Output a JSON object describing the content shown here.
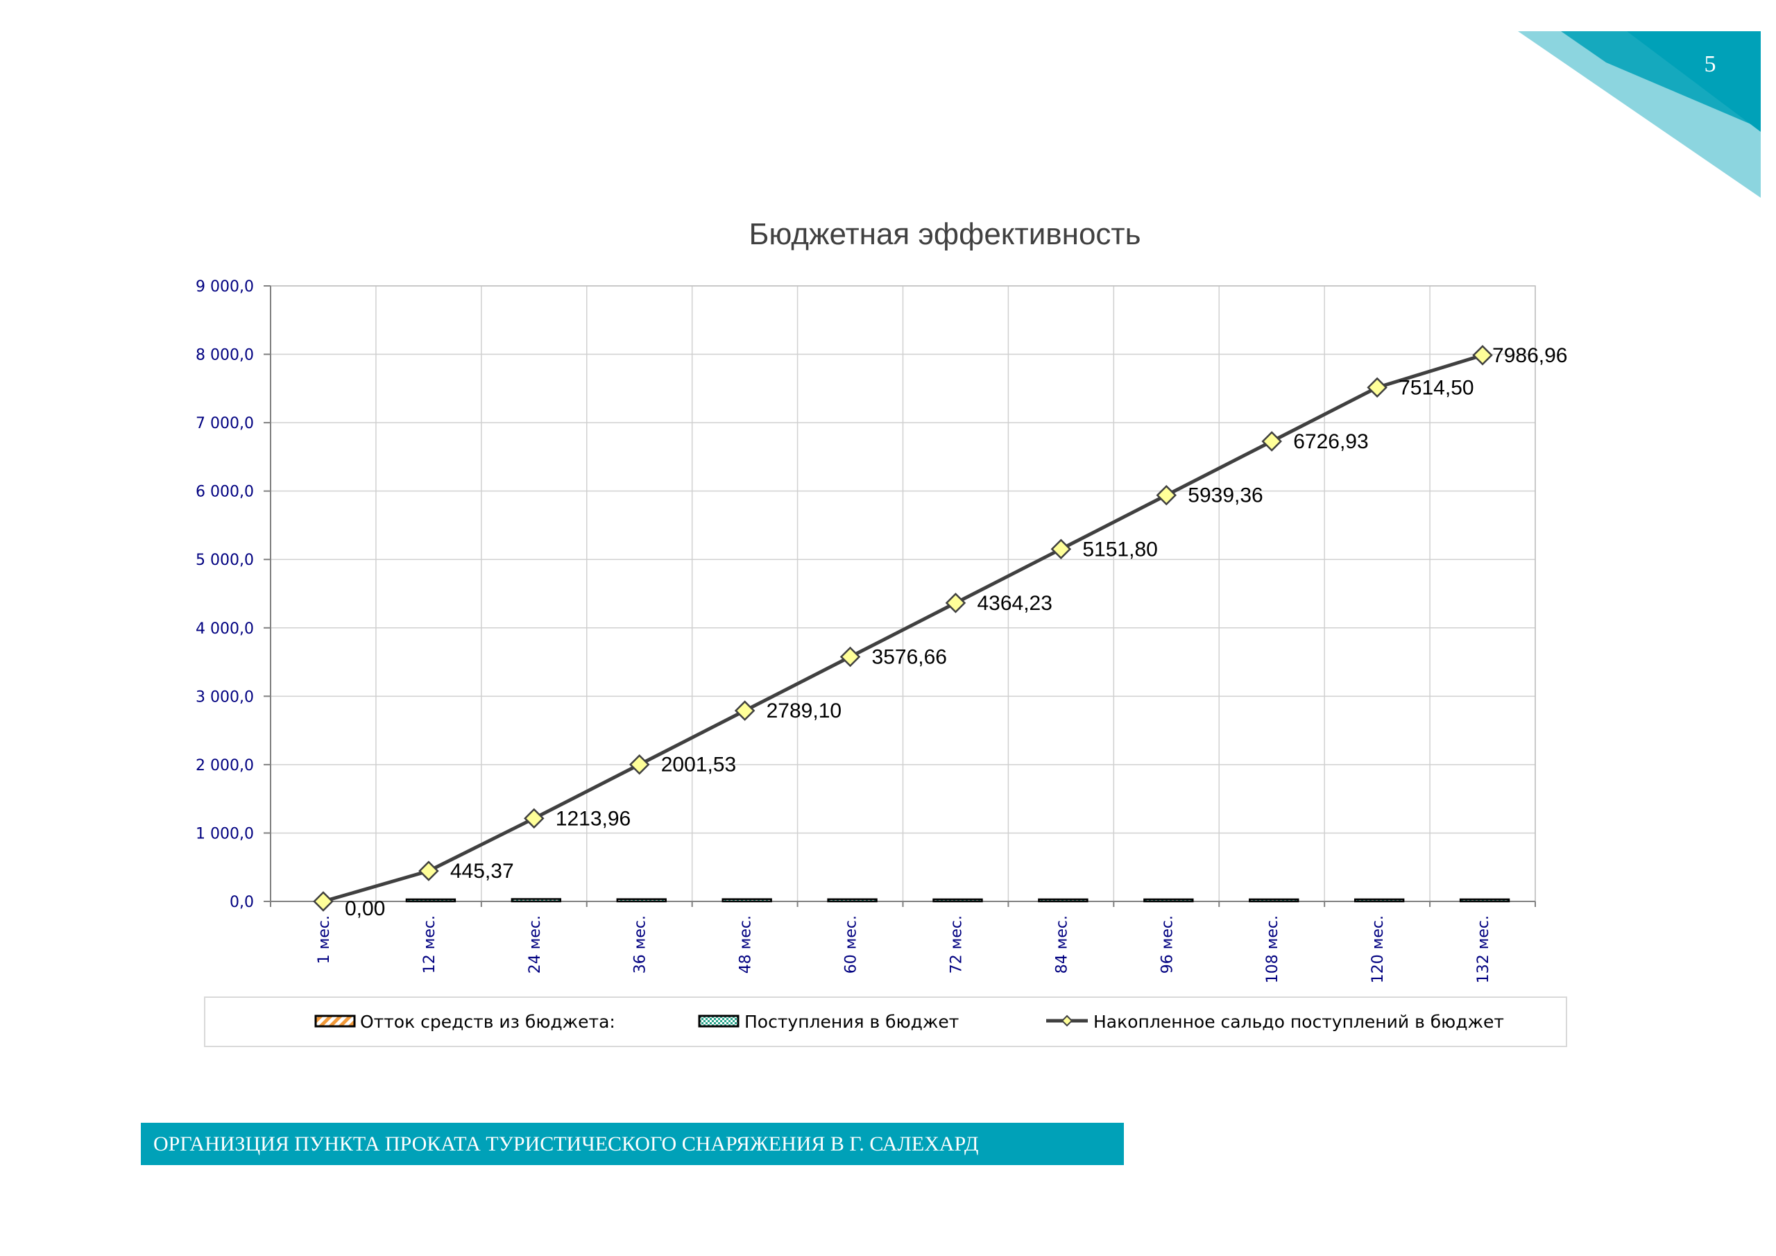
{
  "page": {
    "number": "5",
    "footer_text": "ОРГАНИЗЦИЯ ПУНКТА ПРОКАТА ТУРИСТИЧЕСКОГО СНАРЯЖЕНИЯ В Г. САЛЕХАРД"
  },
  "colors": {
    "accent": "#00a1b8",
    "line": "#404040",
    "marker": "#ffff99",
    "axis_text": "#000080"
  },
  "chart_data": {
    "type": "line",
    "title": "Бюджетная эффективность",
    "xlabel": "",
    "ylabel": "",
    "categories": [
      "1 мес.",
      "12 мес.",
      "24 мес.",
      "36 мес.",
      "48 мес.",
      "60 мес.",
      "72 мес.",
      "84 мес.",
      "96 мес.",
      "108 мес.",
      "120 мес.",
      "132 мес."
    ],
    "ylim": [
      0,
      9000
    ],
    "yticks": [
      {
        "value": 0,
        "label": "0,0"
      },
      {
        "value": 1000,
        "label": "1 000,0"
      },
      {
        "value": 2000,
        "label": "2 000,0"
      },
      {
        "value": 3000,
        "label": "3 000,0"
      },
      {
        "value": 4000,
        "label": "4 000,0"
      },
      {
        "value": 5000,
        "label": "5 000,0"
      },
      {
        "value": 6000,
        "label": "6 000,0"
      },
      {
        "value": 7000,
        "label": "7 000,0"
      },
      {
        "value": 8000,
        "label": "8 000,0"
      },
      {
        "value": 9000,
        "label": "9 000,0"
      }
    ],
    "grid": true,
    "legend_position": "bottom",
    "series": [
      {
        "name": "Отток средств из бюджета:",
        "kind": "bar",
        "values": [
          0,
          0,
          0,
          0,
          0,
          0,
          0,
          0,
          0,
          0,
          0,
          0
        ]
      },
      {
        "name": "Поступления в бюджет",
        "kind": "bar",
        "values": [
          0,
          30,
          35,
          33,
          33,
          32,
          30,
          30,
          29,
          28,
          28,
          10
        ]
      },
      {
        "name": "Накопленное сальдо поступлений в бюджет",
        "kind": "line",
        "values": [
          0.0,
          445.37,
          1213.96,
          2001.53,
          2789.1,
          3576.66,
          4364.23,
          5151.8,
          5939.36,
          6726.93,
          7514.5,
          7986.96
        ],
        "labels": [
          "0,00",
          "445,37",
          "1213,96",
          "2001,53",
          "2789,10",
          "3576,66",
          "4364,23",
          "5151,80",
          "5939,36",
          "6726,93",
          "7514,50",
          "7986,96"
        ]
      }
    ]
  }
}
